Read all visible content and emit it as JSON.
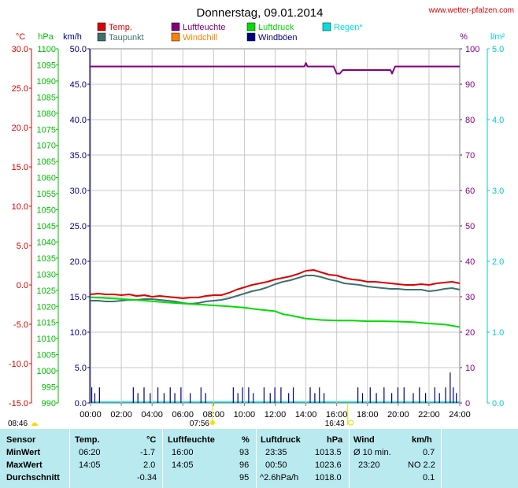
{
  "page": {
    "title": "Donnerstag, 09.01.2014",
    "source_url": "www.wetter-pfalzen.com"
  },
  "colors": {
    "temp": "#dd0000",
    "dewpoint": "#3f7070",
    "humidity": "#800080",
    "windchill": "#ff8000",
    "pressure": "#00dd00",
    "rain": "#00e0e0",
    "wind": "#000080",
    "gust": "#000080",
    "axis_temp": "#dd0000",
    "axis_hpa": "#00bb00",
    "axis_kmh": "#000080",
    "axis_pct": "#800080",
    "axis_rain": "#00cccc"
  },
  "chart_data": {
    "type": "line",
    "title": "Donnerstag, 09.01.2014",
    "legend": [
      {
        "key": "temp",
        "label": "Temp."
      },
      {
        "key": "humidity",
        "label": "Luftfeuchte"
      },
      {
        "key": "pressure",
        "label": "Luftdruck"
      },
      {
        "key": "rain",
        "label": "Regen*"
      },
      {
        "key": "dewpoint",
        "label": "Taupunkt"
      },
      {
        "key": "windchill",
        "label": "Windchill"
      },
      {
        "key": "gust",
        "label": "Windböen"
      }
    ],
    "legend_placement": "top",
    "grid": true,
    "x_axis": {
      "min": 0,
      "max": 24,
      "tick_labels": [
        "00:00",
        "02:00",
        "04:00",
        "06:00",
        "08:00",
        "10:00",
        "12:00",
        "14:00",
        "16:00",
        "18:00",
        "20:00",
        "22:00",
        "24:00"
      ]
    },
    "axes": {
      "temp": {
        "unit": "°C",
        "min": -15,
        "max": 30,
        "ticks": [
          "-15.0",
          "-10.0",
          "-5.0",
          "0.0",
          "5.0",
          "10.0",
          "15.0",
          "20.0",
          "25.0",
          "30.0"
        ]
      },
      "pressure": {
        "unit": "hPa",
        "min": 990,
        "max": 1100,
        "ticks": [
          "990",
          "995",
          "1000",
          "1005",
          "1010",
          "1015",
          "1020",
          "1025",
          "1030",
          "1035",
          "1040",
          "1045",
          "1050",
          "1055",
          "1060",
          "1065",
          "1070",
          "1075",
          "1080",
          "1085",
          "1090",
          "1095",
          "1100"
        ]
      },
      "wind": {
        "unit": "km/h",
        "min": 0,
        "max": 50,
        "ticks": [
          "0.0",
          "5.0",
          "10.0",
          "15.0",
          "20.0",
          "25.0",
          "30.0",
          "35.0",
          "40.0",
          "45.0",
          "50.0"
        ]
      },
      "humidity": {
        "unit": "%",
        "min": 0,
        "max": 100,
        "ticks": [
          "0",
          "10",
          "20",
          "30",
          "40",
          "50",
          "60",
          "70",
          "80",
          "90",
          "100"
        ]
      },
      "rain": {
        "unit": "l/m²",
        "min": 0,
        "max": 5,
        "ticks": [
          "0.0",
          "1.0",
          "2.0",
          "3.0",
          "4.0",
          "5.0"
        ]
      }
    },
    "series": [
      {
        "name": "Temp.",
        "axis": "temp",
        "color_key": "temp",
        "x": [
          0,
          0.5,
          1,
          1.5,
          2,
          2.5,
          3,
          3.5,
          4,
          4.5,
          5,
          5.5,
          6,
          6.5,
          7,
          7.5,
          8,
          8.5,
          9,
          9.5,
          10,
          10.5,
          11,
          11.5,
          12,
          12.5,
          13,
          13.5,
          14,
          14.5,
          15,
          15.5,
          16,
          16.5,
          17,
          17.5,
          18,
          18.5,
          19,
          19.5,
          20,
          20.5,
          21,
          21.5,
          22,
          22.5,
          23,
          23.5,
          24
        ],
        "y": [
          -1.2,
          -1.1,
          -1.2,
          -1.2,
          -1.3,
          -1.2,
          -1.4,
          -1.3,
          -1.5,
          -1.4,
          -1.5,
          -1.6,
          -1.7,
          -1.6,
          -1.6,
          -1.4,
          -1.3,
          -1.3,
          -1.0,
          -0.6,
          -0.3,
          0.0,
          0.2,
          0.4,
          0.7,
          0.9,
          1.1,
          1.4,
          1.8,
          1.9,
          1.6,
          1.3,
          1.2,
          0.9,
          0.7,
          0.6,
          0.4,
          0.4,
          0.3,
          0.2,
          0.1,
          0.0,
          0.0,
          0.1,
          0.0,
          0.2,
          0.3,
          0.4,
          0.2
        ]
      },
      {
        "name": "Taupunkt",
        "axis": "temp",
        "color_key": "dewpoint",
        "x": [
          0,
          0.5,
          1,
          1.5,
          2,
          2.5,
          3,
          3.5,
          4,
          4.5,
          5,
          5.5,
          6,
          6.5,
          7,
          7.5,
          8,
          8.5,
          9,
          9.5,
          10,
          10.5,
          11,
          11.5,
          12,
          12.5,
          13,
          13.5,
          14,
          14.5,
          15,
          15.5,
          16,
          16.5,
          17,
          17.5,
          18,
          18.5,
          19,
          19.5,
          20,
          20.5,
          21,
          21.5,
          22,
          22.5,
          23,
          23.5,
          24
        ],
        "y": [
          -2.0,
          -2.0,
          -2.1,
          -2.1,
          -2.0,
          -1.9,
          -1.9,
          -1.8,
          -1.8,
          -1.9,
          -2.0,
          -2.1,
          -2.3,
          -2.4,
          -2.3,
          -2.1,
          -2.0,
          -1.9,
          -1.7,
          -1.4,
          -1.1,
          -0.8,
          -0.6,
          -0.3,
          0.1,
          0.4,
          0.6,
          0.9,
          1.2,
          1.2,
          1.0,
          0.7,
          0.5,
          0.2,
          0.1,
          0.0,
          -0.2,
          -0.3,
          -0.4,
          -0.5,
          -0.5,
          -0.6,
          -0.6,
          -0.6,
          -0.8,
          -0.7,
          -0.5,
          -0.4,
          -0.6
        ]
      },
      {
        "name": "Luftfeuchte",
        "axis": "humidity",
        "color_key": "humidity",
        "x": [
          0,
          13.9,
          14.0,
          14.1,
          14.2,
          15.8,
          16.0,
          16.2,
          16.4,
          19.5,
          19.6,
          19.8,
          20.2,
          24
        ],
        "y": [
          95,
          95,
          96,
          95,
          95,
          95,
          93,
          93,
          94,
          94,
          93,
          95,
          95,
          95
        ]
      },
      {
        "name": "Luftdruck",
        "axis": "pressure",
        "color_key": "pressure",
        "x": [
          0,
          1,
          2,
          3,
          4,
          5,
          6,
          7,
          8,
          9,
          10,
          11,
          12,
          12.5,
          13,
          14,
          15,
          16,
          17,
          18,
          19,
          20,
          21,
          22,
          23,
          24
        ],
        "y": [
          1022.8,
          1022.6,
          1022.3,
          1022.0,
          1021.6,
          1021.2,
          1020.9,
          1020.6,
          1020.3,
          1020.0,
          1019.6,
          1019.0,
          1018.5,
          1017.6,
          1017.2,
          1016.2,
          1015.8,
          1015.6,
          1015.6,
          1015.4,
          1015.4,
          1015.3,
          1015.1,
          1014.7,
          1014.4,
          1013.6
        ]
      },
      {
        "name": "Windböen",
        "axis": "wind",
        "color_key": "gust",
        "type": "bar",
        "x": [
          0.1,
          0.3,
          0.6,
          2.8,
          3.1,
          3.5,
          3.9,
          4.4,
          4.8,
          5.2,
          5.5,
          5.9,
          6.5,
          7.2,
          7.5,
          9.3,
          9.6,
          9.9,
          10.3,
          10.6,
          11.3,
          11.7,
          12.0,
          12.4,
          12.9,
          13.2,
          14.3,
          14.6,
          14.9,
          15.2,
          17.4,
          17.7,
          18.2,
          18.6,
          19.1,
          19.6,
          20.0,
          20.4,
          21.0,
          21.4,
          21.8,
          22.4,
          22.7,
          23.1,
          23.4,
          23.6,
          23.8
        ],
        "y": [
          2.2,
          1.4,
          2.2,
          2.2,
          1.4,
          2.2,
          1.4,
          2.2,
          1.4,
          2.2,
          1.4,
          2.2,
          1.4,
          2.2,
          1.4,
          2.2,
          1.4,
          2.2,
          2.2,
          1.4,
          2.2,
          1.4,
          2.2,
          2.2,
          1.4,
          2.2,
          2.2,
          1.4,
          2.2,
          1.4,
          2.2,
          1.4,
          2.2,
          1.4,
          2.2,
          1.4,
          2.2,
          2.2,
          1.4,
          2.2,
          1.4,
          2.2,
          1.4,
          2.2,
          4.3,
          2.2,
          1.4
        ]
      }
    ],
    "annotations": [
      {
        "label": "08:46",
        "x": 8.77,
        "symbol": "moon"
      },
      {
        "label": "07:56",
        "x": 7.93,
        "symbol": "sunrise"
      },
      {
        "label": "16:43",
        "x": 16.72,
        "symbol": "sunset"
      }
    ]
  },
  "stats": {
    "headers": {
      "sensor": "Sensor",
      "temp": "Temp.",
      "temp_unit": "°C",
      "hum": "Luftfeuchte",
      "hum_unit": "%",
      "press": "Luftdruck",
      "press_unit": "hPa",
      "wind": "Wind",
      "wind_unit": "km/h"
    },
    "rows": [
      {
        "label": "MinWert",
        "temp_time": "06:20",
        "temp_val": "-1.7",
        "hum_time": "16:00",
        "hum_val": "93",
        "press_time": "23:35",
        "press_val": "1013.5",
        "wind_time": "Ø 10 min.",
        "wind_val": "0.7"
      },
      {
        "label": "MaxWert",
        "temp_time": "14:05",
        "temp_val": "2.0",
        "hum_time": "14:05",
        "hum_val": "96",
        "press_time": "00:50",
        "press_val": "1023.6",
        "wind_time": "23:20",
        "wind_val": "NO 2.2"
      },
      {
        "label": "Durchschnitt",
        "temp_time": "",
        "temp_val": "-0.34",
        "hum_time": "",
        "hum_val": "95",
        "press_time": "^2.6hPa/h",
        "press_val": "1018.0",
        "wind_time": "",
        "wind_val": "0.1"
      }
    ]
  }
}
